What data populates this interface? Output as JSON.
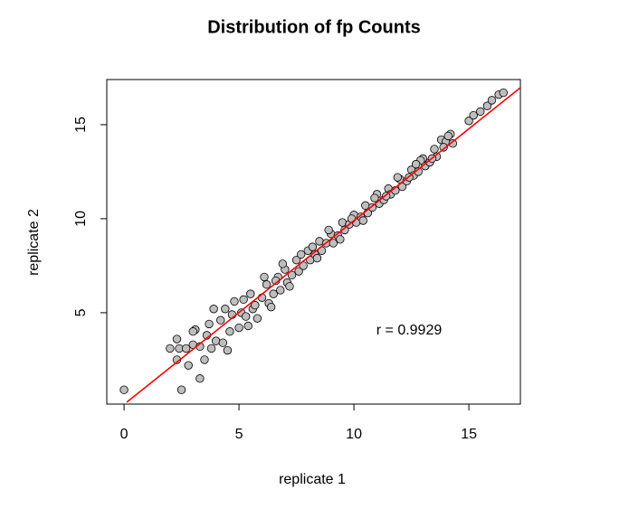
{
  "chart_data": {
    "type": "scatter",
    "title": "Distribution of fp Counts",
    "x_label": "replicate 1",
    "y_label": "replicate 2",
    "annotation": "r = 0.9929",
    "x": [
      0,
      2.5,
      3.3,
      2.8,
      2.3,
      2.0,
      2.4,
      2.7,
      3.0,
      2.3,
      3.3,
      3.1,
      3.5,
      3.6,
      3.9,
      4.0,
      4.2,
      4.5,
      4.6,
      4.8,
      5.0,
      5.1,
      5.3,
      5.5,
      5.6,
      5.8,
      6.0,
      6.2,
      6.3,
      6.5,
      6.7,
      6.8,
      7.0,
      7.1,
      7.3,
      7.5,
      7.6,
      7.8,
      8.0,
      8.1,
      8.3,
      8.5,
      8.6,
      8.8,
      9.0,
      9.1,
      9.3,
      9.5,
      9.6,
      9.8,
      10.0,
      10.1,
      10.3,
      10.5,
      10.6,
      10.8,
      11.0,
      11.1,
      11.3,
      11.5,
      11.6,
      11.8,
      12.0,
      12.1,
      12.3,
      12.5,
      12.6,
      12.8,
      13.0,
      13.1,
      13.3,
      13.5,
      13.6,
      13.8,
      14.0,
      14.2,
      14.3,
      15.0,
      15.2,
      15.5,
      15.8,
      16.0,
      16.3,
      16.5,
      3.7,
      4.3,
      4.7,
      5.2,
      5.7,
      6.1,
      6.4,
      6.9,
      7.2,
      7.7,
      8.2,
      8.4,
      8.9,
      9.4,
      9.9,
      10.4,
      10.9,
      11.4,
      11.9,
      12.4,
      12.9,
      13.4,
      13.9,
      3.0,
      3.8,
      4.4,
      5.4,
      6.6,
      12.7,
      14.1
    ],
    "y": [
      0.9,
      0.9,
      1.5,
      2.2,
      2.5,
      3.1,
      3.1,
      3.1,
      3.3,
      3.6,
      3.2,
      4.1,
      2.5,
      3.8,
      5.2,
      3.5,
      4.6,
      3.0,
      4.0,
      5.6,
      4.2,
      5.0,
      4.8,
      6.0,
      5.2,
      4.7,
      5.8,
      6.5,
      5.5,
      6.0,
      6.9,
      6.2,
      7.3,
      6.6,
      7.0,
      7.8,
      7.2,
      7.5,
      8.3,
      7.8,
      8.1,
      8.8,
      8.3,
      8.7,
      9.2,
      8.7,
      9.1,
      9.8,
      9.4,
      9.7,
      10.2,
      9.8,
      10.1,
      10.7,
      10.3,
      10.6,
      11.3,
      10.8,
      11.0,
      11.6,
      11.3,
      11.5,
      12.1,
      11.7,
      12.0,
      12.6,
      12.3,
      12.5,
      13.2,
      12.8,
      13.0,
      13.7,
      13.3,
      14.2,
      14.1,
      14.5,
      14.0,
      15.2,
      15.5,
      15.7,
      16.0,
      16.3,
      16.6,
      16.7,
      4.4,
      3.4,
      4.9,
      5.7,
      5.4,
      6.9,
      5.3,
      7.6,
      6.4,
      8.1,
      8.5,
      7.9,
      9.4,
      8.9,
      10.0,
      9.9,
      11.1,
      11.2,
      12.2,
      12.2,
      13.1,
      13.2,
      13.8,
      4.0,
      3.1,
      5.2,
      4.3,
      6.7,
      12.9,
      14.4
    ],
    "point_color": "#bebebe",
    "fit_line": {
      "x": [
        0.12,
        17.24
      ],
      "y": [
        0.24,
        16.97
      ],
      "color": "#ff0000"
    },
    "xlim": [
      -0.75,
      17.24
    ],
    "ylim": [
      0.14,
      17.4
    ],
    "xticks": [
      0,
      5,
      10,
      15
    ],
    "yticks": [
      5,
      10,
      15
    ]
  }
}
